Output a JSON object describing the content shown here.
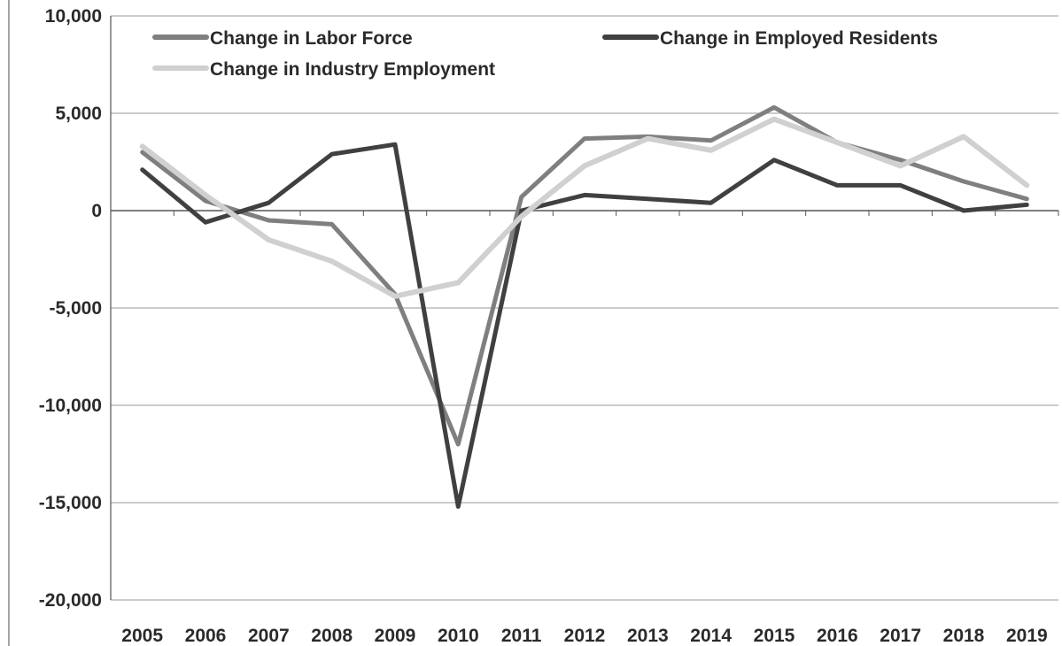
{
  "chart_data": {
    "type": "line",
    "title": "",
    "xlabel": "",
    "ylabel": "",
    "categories": [
      "2005",
      "2006",
      "2007",
      "2008",
      "2009",
      "2010",
      "2011",
      "2012",
      "2013",
      "2014",
      "2015",
      "2016",
      "2017",
      "2018",
      "2019"
    ],
    "ylim": [
      -20000,
      10000
    ],
    "yticks": [
      10000,
      5000,
      0,
      -5000,
      -10000,
      -15000,
      -20000
    ],
    "ytick_labels": [
      "10,000",
      "5,000",
      "0",
      "-5,000",
      "-10,000",
      "-15,000",
      "-20,000"
    ],
    "grid": true,
    "legend_position": "top",
    "series": [
      {
        "name": "Change in Labor Force",
        "color": "#7f7f7f",
        "values": [
          3000,
          500,
          -500,
          -700,
          -4300,
          -12000,
          700,
          3700,
          3800,
          3600,
          5300,
          3500,
          2600,
          1500,
          600
        ]
      },
      {
        "name": "Change in Employed Residents",
        "color": "#404040",
        "values": [
          2100,
          -600,
          400,
          2900,
          3400,
          -15200,
          0,
          800,
          600,
          400,
          2600,
          1300,
          1300,
          0,
          300
        ]
      },
      {
        "name": "Change in Industry Employment",
        "color": "#d0d0d0",
        "values": [
          3300,
          800,
          -1500,
          -2600,
          -4400,
          -3700,
          -300,
          2300,
          3700,
          3100,
          4700,
          3500,
          2300,
          3800,
          1300
        ]
      }
    ]
  }
}
